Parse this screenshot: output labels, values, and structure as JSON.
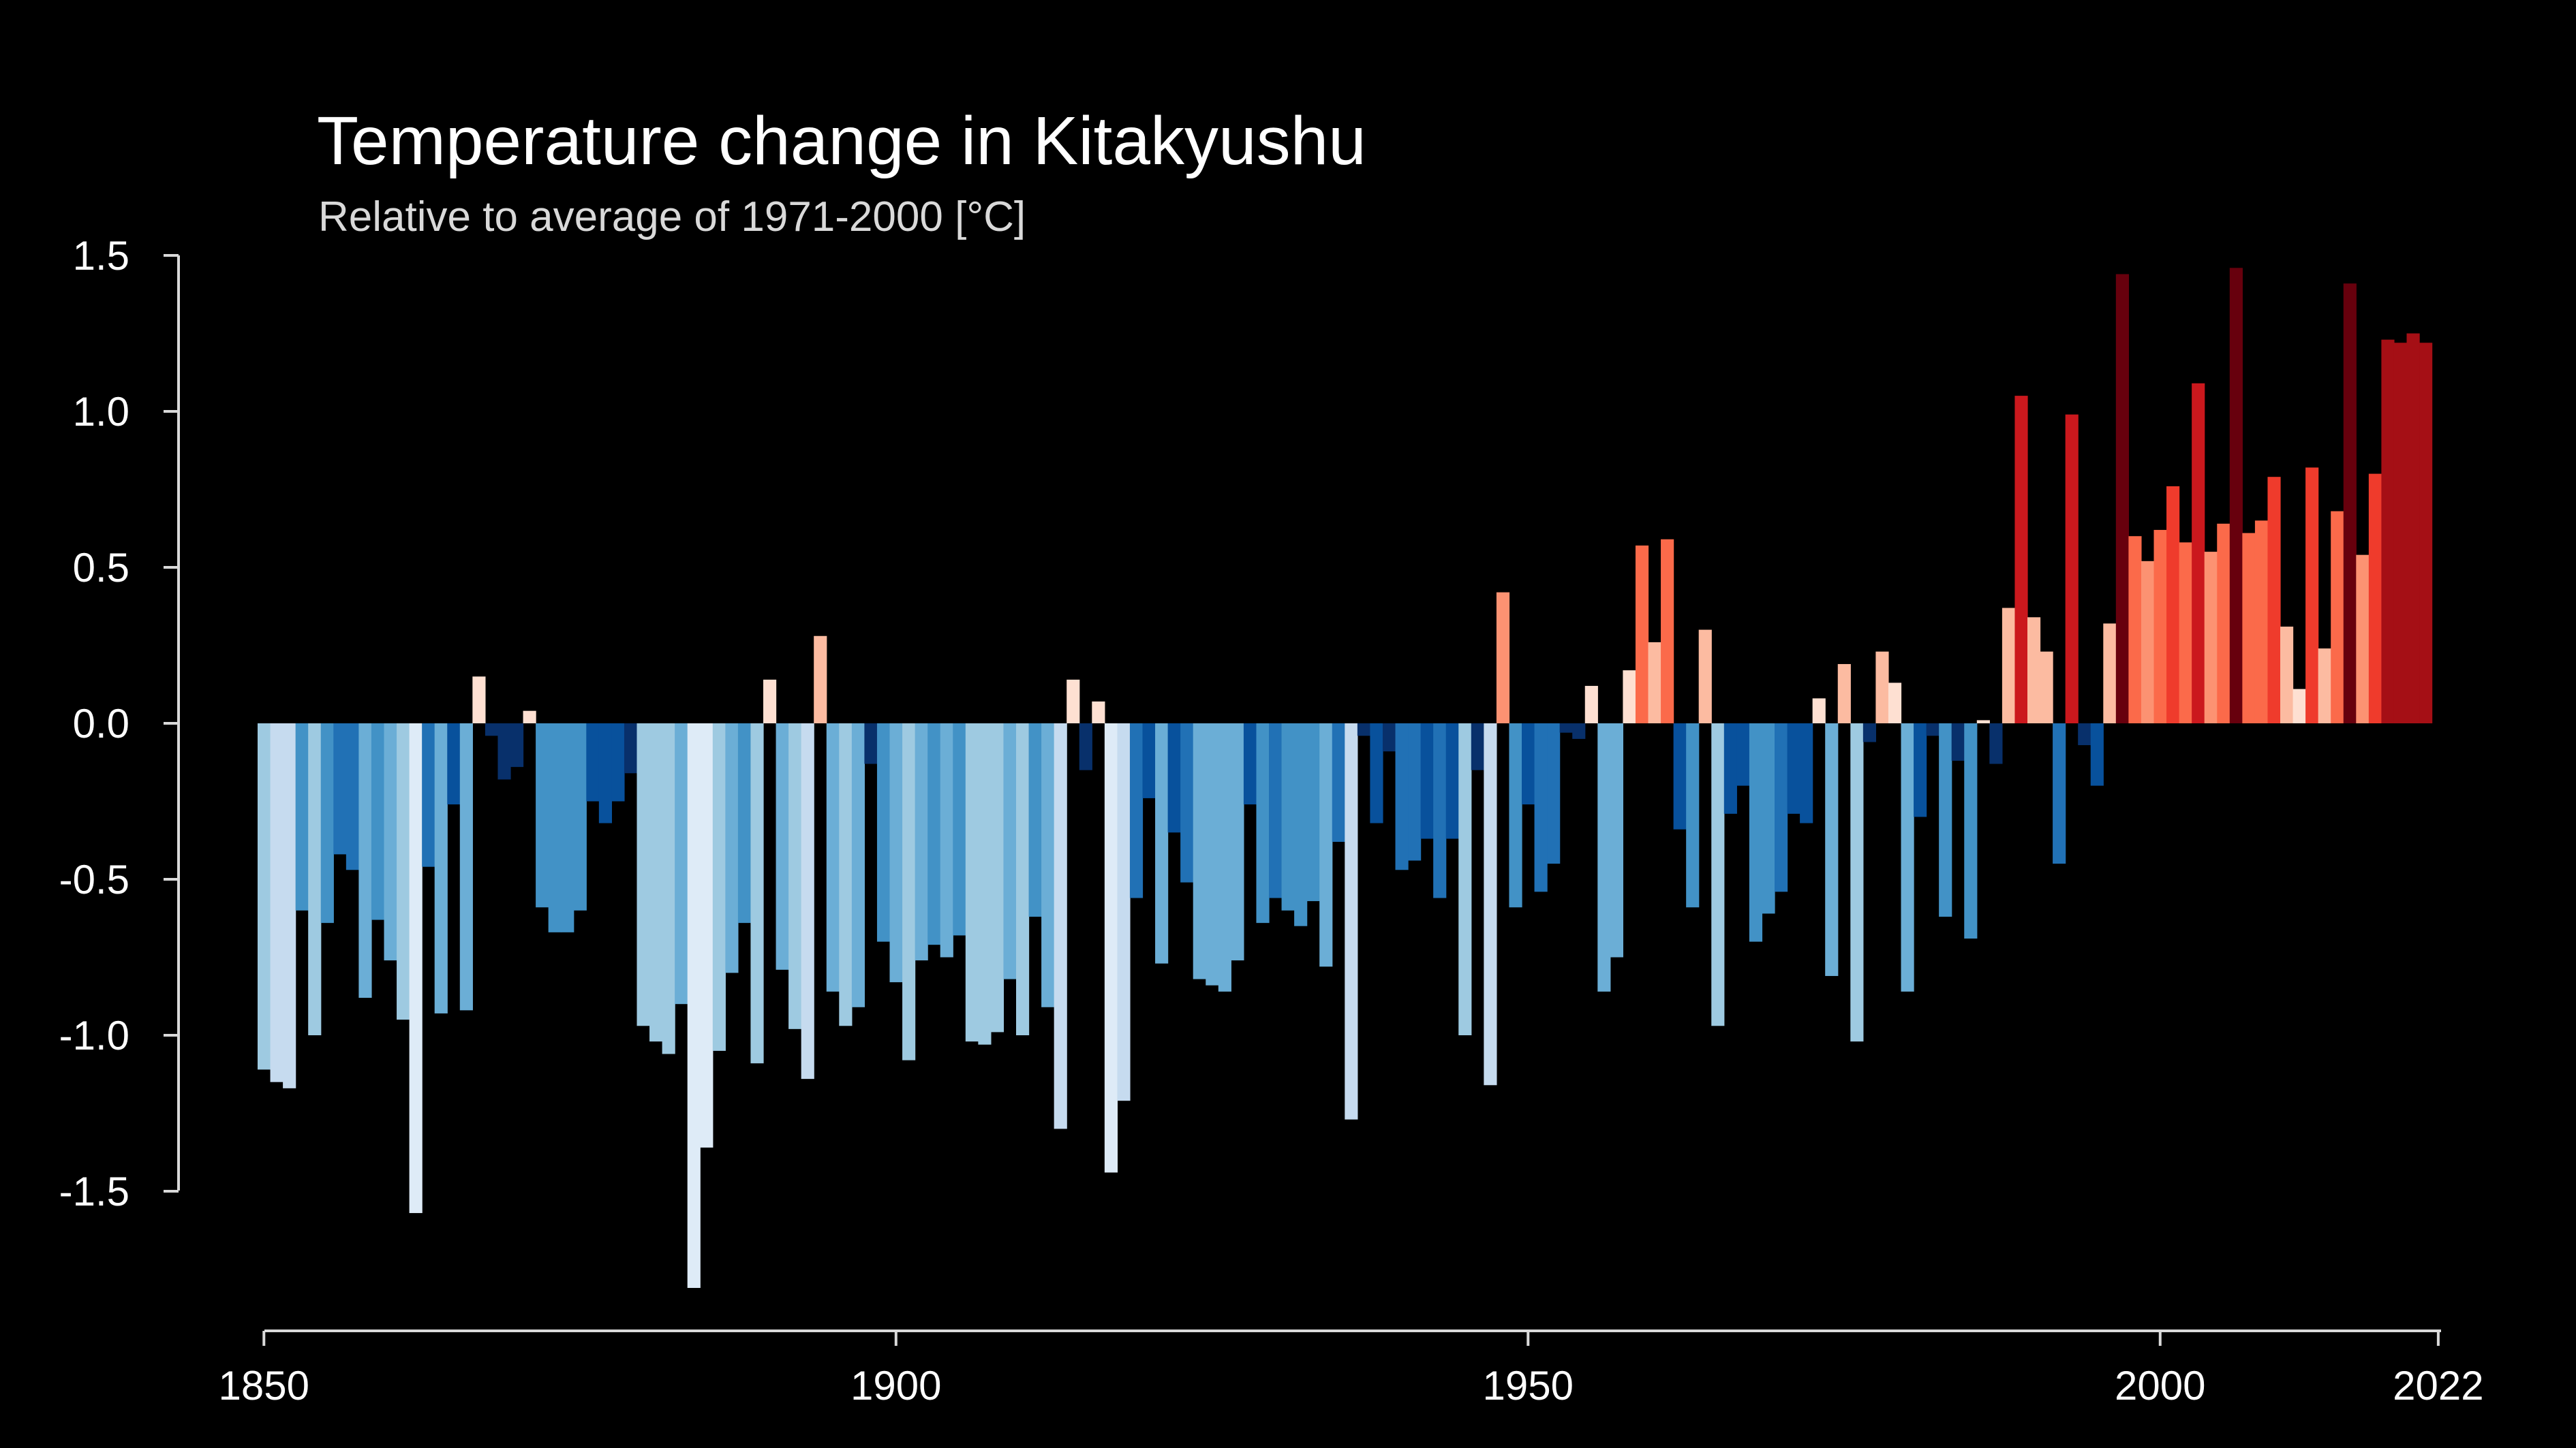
{
  "chart_data": {
    "type": "bar",
    "title": "Temperature change in Kitakyushu",
    "subtitle": "Relative to average of 1971-2000  [°C]",
    "xlabel": "",
    "ylabel": "",
    "x_start": 1850,
    "x_end": 2022,
    "xlim": [
      1850,
      2022
    ],
    "ylim": [
      -1.8,
      1.5
    ],
    "x_ticks": [
      {
        "value": 1850,
        "label": "1850"
      },
      {
        "value": 1900,
        "label": "1900"
      },
      {
        "value": 1950,
        "label": "1950"
      },
      {
        "value": 2000,
        "label": "2000"
      },
      {
        "value": 2022,
        "label": "2022"
      }
    ],
    "y_ticks": [
      {
        "value": 1.5,
        "label": "1.5"
      },
      {
        "value": 1.0,
        "label": "1.0"
      },
      {
        "value": 0.5,
        "label": "0.5"
      },
      {
        "value": 0.0,
        "label": "0.0"
      },
      {
        "value": -0.5,
        "label": "-0.5"
      },
      {
        "value": -1.0,
        "label": "-1.0"
      },
      {
        "value": -1.5,
        "label": "-1.5"
      }
    ],
    "grid": false,
    "legend": "none",
    "color_scale": {
      "negative": [
        "#08306b",
        "#08519c",
        "#2171b5",
        "#4292c6",
        "#6baed6",
        "#9ecae1",
        "#c6dbef",
        "#deebf7"
      ],
      "positive": [
        "#fee0d2",
        "#fcbba1",
        "#fc9272",
        "#fb6a4a",
        "#ef3b2c",
        "#cb181d",
        "#a50f15",
        "#67000d"
      ],
      "range": 1.5
    },
    "values": [
      -1.11,
      -1.15,
      -1.17,
      -0.6,
      -1.0,
      -0.64,
      -0.42,
      -0.47,
      -0.88,
      -0.63,
      -0.76,
      -0.95,
      -1.57,
      -0.46,
      -0.93,
      -0.26,
      -0.92,
      0.15,
      -0.04,
      -0.18,
      -0.14,
      0.04,
      -0.59,
      -0.67,
      -0.67,
      -0.6,
      -0.25,
      -0.32,
      -0.25,
      -0.16,
      -0.97,
      -1.02,
      -1.06,
      -0.9,
      -1.81,
      -1.36,
      -1.05,
      -0.8,
      -0.64,
      -1.09,
      0.14,
      -0.79,
      -0.98,
      -1.14,
      0.28,
      -0.86,
      -0.97,
      -0.91,
      -0.13,
      -0.7,
      -0.83,
      -1.08,
      -0.76,
      -0.71,
      -0.75,
      -0.68,
      -1.02,
      -1.03,
      -0.99,
      -0.82,
      -1.0,
      -0.62,
      -0.91,
      -1.3,
      0.14,
      -0.15,
      0.07,
      -1.44,
      -1.21,
      -0.56,
      -0.24,
      -0.77,
      -0.35,
      -0.51,
      -0.82,
      -0.84,
      -0.86,
      -0.76,
      -0.26,
      -0.64,
      -0.56,
      -0.6,
      -0.65,
      -0.57,
      -0.78,
      -0.38,
      -1.27,
      -0.04,
      -0.32,
      -0.09,
      -0.47,
      -0.44,
      -0.37,
      -0.56,
      -0.37,
      -1.0,
      -0.15,
      -1.16,
      0.42,
      -0.59,
      -0.26,
      -0.54,
      -0.45,
      -0.03,
      -0.05,
      0.12,
      -0.86,
      -0.75,
      0.17,
      0.57,
      0.26,
      0.59,
      -0.34,
      -0.59,
      0.3,
      -0.97,
      -0.29,
      -0.2,
      -0.7,
      -0.61,
      -0.54,
      -0.29,
      -0.32,
      0.08,
      -0.81,
      0.19,
      -1.02,
      -0.06,
      0.23,
      0.13,
      -0.86,
      -0.3,
      -0.04,
      -0.62,
      -0.12,
      -0.69,
      0.01,
      -0.13,
      0.37,
      1.05,
      0.34,
      0.23,
      -0.45,
      0.99,
      -0.07,
      -0.2,
      0.32,
      1.44,
      0.6,
      0.52,
      0.62,
      0.76,
      0.58,
      1.09,
      0.55,
      0.64,
      1.46,
      0.61,
      0.65,
      0.79,
      0.31,
      0.11,
      0.82,
      0.24,
      0.68,
      1.41,
      0.54,
      0.8,
      1.23,
      1.22,
      1.25,
      1.22
    ]
  }
}
